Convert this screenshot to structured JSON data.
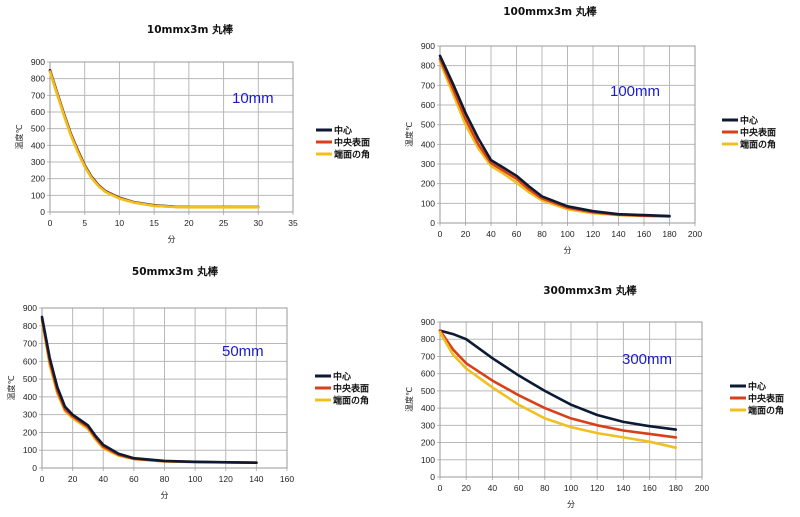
{
  "legend_colors": {
    "center": "#0d1a33",
    "surface": "#d8401a",
    "corner": "#f0c020"
  },
  "chart_data": [
    {
      "type": "line",
      "title": "10mmx3m 丸棒",
      "size_label": "10mm",
      "xlabel": "分",
      "ylabel": "温度℃",
      "xlim": [
        0,
        35
      ],
      "ylim": [
        0,
        900
      ],
      "xticks": [
        "0",
        "5",
        "10",
        "15",
        "20",
        "25",
        "30",
        "35"
      ],
      "yticks": [
        "0",
        "100",
        "200",
        "300",
        "400",
        "500",
        "600",
        "700",
        "800",
        "900"
      ],
      "grid": true,
      "legend_position": "right",
      "series": [
        {
          "name": "中心",
          "color": "#0d1a33",
          "x": [
            0,
            1,
            2,
            3,
            4,
            5,
            6,
            7,
            8,
            10,
            12,
            15,
            18,
            20,
            25,
            30
          ],
          "y": [
            850,
            720,
            590,
            470,
            370,
            280,
            210,
            160,
            125,
            85,
            60,
            40,
            32,
            30,
            30,
            30
          ]
        },
        {
          "name": "中央表面",
          "color": "#d8401a",
          "x": [
            0,
            1,
            2,
            3,
            4,
            5,
            6,
            7,
            8,
            10,
            12,
            15,
            18,
            20,
            25,
            30
          ],
          "y": [
            845,
            715,
            585,
            465,
            365,
            276,
            206,
            157,
            122,
            83,
            58,
            38,
            31,
            29,
            29,
            29
          ]
        },
        {
          "name": "端面の角",
          "color": "#f0c020",
          "x": [
            0,
            1,
            2,
            3,
            4,
            5,
            6,
            7,
            8,
            10,
            12,
            15,
            18,
            20,
            25,
            30
          ],
          "y": [
            840,
            710,
            580,
            460,
            360,
            272,
            203,
            154,
            120,
            81,
            57,
            37,
            30,
            28,
            28,
            28
          ]
        }
      ]
    },
    {
      "type": "line",
      "title": "100mmx3m 丸棒",
      "size_label": "100mm",
      "xlabel": "分",
      "ylabel": "温度℃",
      "xlim": [
        0,
        200
      ],
      "ylim": [
        0,
        900
      ],
      "xticks": [
        "0",
        "20",
        "40",
        "60",
        "80",
        "100",
        "120",
        "140",
        "160",
        "180",
        "200"
      ],
      "yticks": [
        "0",
        "100",
        "200",
        "300",
        "400",
        "500",
        "600",
        "700",
        "800",
        "900"
      ],
      "grid": true,
      "legend_position": "right",
      "series": [
        {
          "name": "端面の角",
          "color": "#f0c020",
          "x": [
            0,
            10,
            20,
            30,
            40,
            50,
            60,
            70,
            80,
            100,
            120,
            140,
            160,
            180
          ],
          "y": [
            820,
            660,
            500,
            380,
            290,
            250,
            205,
            155,
            115,
            70,
            50,
            40,
            36,
            33
          ]
        },
        {
          "name": "中央表面",
          "color": "#d8401a",
          "x": [
            0,
            10,
            20,
            30,
            40,
            50,
            60,
            70,
            80,
            100,
            120,
            140,
            160,
            180
          ],
          "y": [
            835,
            685,
            530,
            400,
            305,
            265,
            225,
            170,
            125,
            78,
            55,
            42,
            37,
            34
          ]
        },
        {
          "name": "中心",
          "color": "#0d1a33",
          "x": [
            0,
            10,
            20,
            30,
            40,
            50,
            60,
            70,
            80,
            100,
            120,
            140,
            160,
            180
          ],
          "y": [
            850,
            710,
            560,
            430,
            320,
            280,
            240,
            185,
            135,
            85,
            60,
            45,
            40,
            35
          ]
        }
      ]
    },
    {
      "type": "line",
      "title": "50mmx3m 丸棒",
      "size_label": "50mm",
      "xlabel": "分",
      "ylabel": "温度℃",
      "xlim": [
        0,
        160
      ],
      "ylim": [
        0,
        900
      ],
      "xticks": [
        "0",
        "20",
        "40",
        "60",
        "80",
        "100",
        "120",
        "140",
        "160"
      ],
      "yticks": [
        "0",
        "100",
        "200",
        "300",
        "400",
        "500",
        "600",
        "700",
        "800",
        "900"
      ],
      "grid": true,
      "legend_position": "right",
      "series": [
        {
          "name": "端面の角",
          "color": "#f0c020",
          "x": [
            0,
            5,
            10,
            15,
            20,
            25,
            30,
            35,
            40,
            50,
            60,
            80,
            100,
            140
          ],
          "y": [
            830,
            580,
            420,
            320,
            280,
            250,
            220,
            160,
            110,
            70,
            50,
            37,
            33,
            30
          ]
        },
        {
          "name": "中央表面",
          "color": "#d8401a",
          "x": [
            0,
            5,
            10,
            15,
            20,
            25,
            30,
            35,
            40,
            50,
            60,
            80,
            100,
            140
          ],
          "y": [
            840,
            600,
            435,
            330,
            290,
            260,
            230,
            170,
            120,
            75,
            52,
            38,
            34,
            30
          ]
        },
        {
          "name": "中心",
          "color": "#0d1a33",
          "x": [
            0,
            5,
            10,
            15,
            20,
            25,
            30,
            35,
            40,
            50,
            60,
            80,
            100,
            140
          ],
          "y": [
            850,
            620,
            455,
            345,
            300,
            270,
            240,
            180,
            130,
            80,
            55,
            40,
            35,
            30
          ]
        }
      ]
    },
    {
      "type": "line",
      "title": "300mmx3m 丸棒",
      "size_label": "300mm",
      "xlabel": "分",
      "ylabel": "温度℃",
      "xlim": [
        0,
        200
      ],
      "ylim": [
        0,
        900
      ],
      "xticks": [
        "0",
        "20",
        "40",
        "60",
        "80",
        "100",
        "120",
        "140",
        "160",
        "180",
        "200"
      ],
      "yticks": [
        "0",
        "100",
        "200",
        "300",
        "400",
        "500",
        "600",
        "700",
        "800",
        "900"
      ],
      "grid": true,
      "legend_position": "right",
      "series": [
        {
          "name": "中心",
          "color": "#0d1a33",
          "x": [
            0,
            10,
            20,
            40,
            60,
            80,
            100,
            120,
            140,
            160,
            180
          ],
          "y": [
            850,
            830,
            800,
            690,
            590,
            500,
            420,
            360,
            320,
            295,
            275
          ]
        },
        {
          "name": "中央表面",
          "color": "#d8401a",
          "x": [
            0,
            10,
            20,
            40,
            60,
            80,
            100,
            120,
            140,
            160,
            180
          ],
          "y": [
            850,
            740,
            660,
            560,
            475,
            400,
            340,
            300,
            270,
            250,
            230
          ]
        },
        {
          "name": "端面の角",
          "color": "#f0c020",
          "x": [
            0,
            10,
            20,
            40,
            60,
            80,
            100,
            120,
            140,
            160,
            180
          ],
          "y": [
            840,
            710,
            630,
            520,
            420,
            340,
            290,
            255,
            230,
            205,
            170
          ]
        }
      ]
    }
  ],
  "legend": [
    "中心",
    "中央表面",
    "端面の角"
  ]
}
